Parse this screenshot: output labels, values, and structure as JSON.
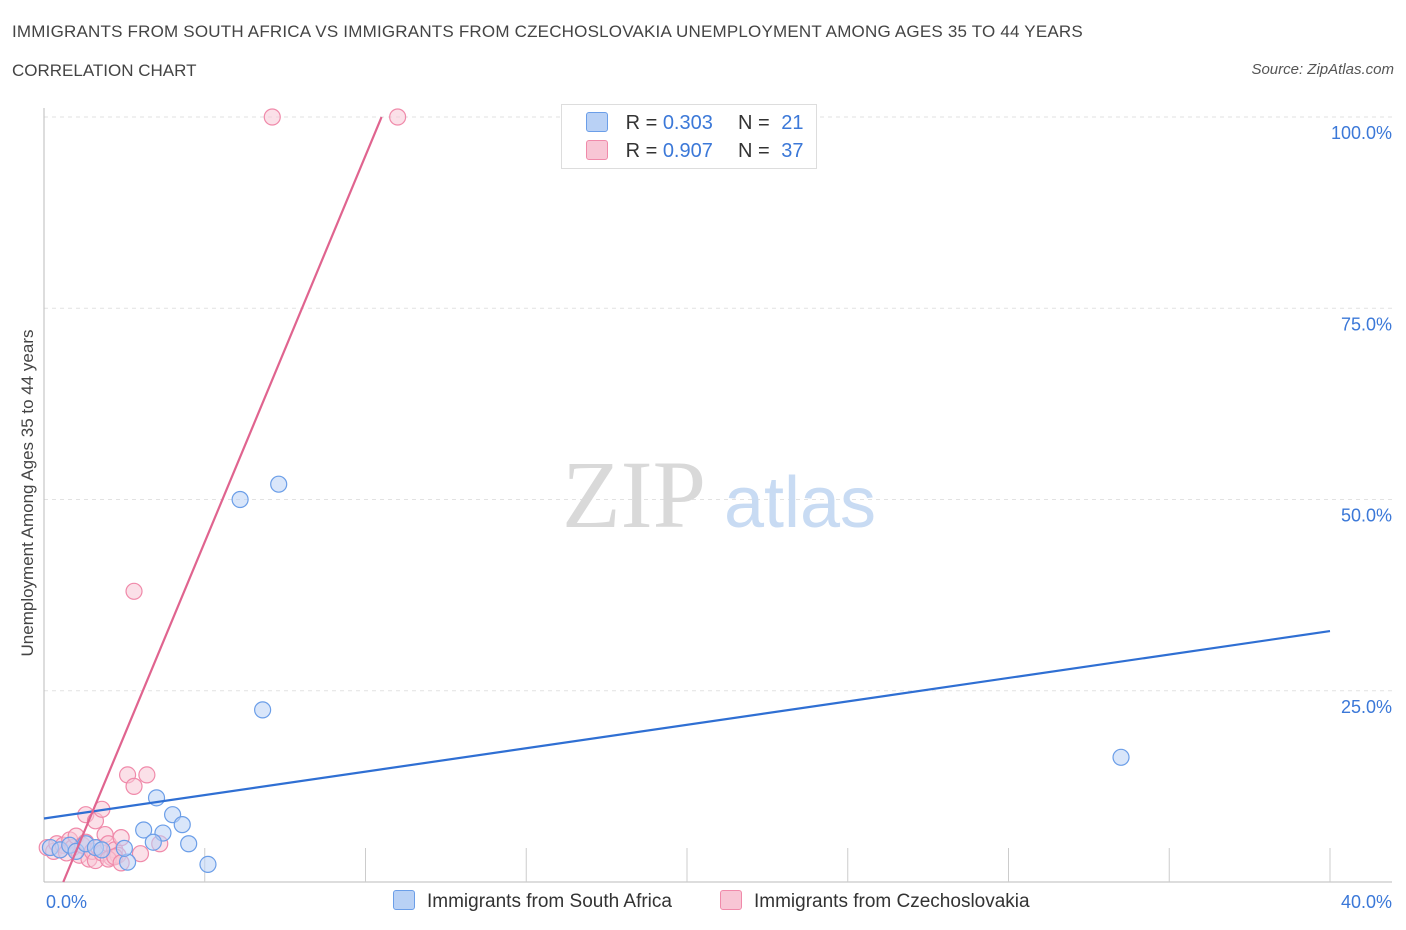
{
  "header": {
    "title": "IMMIGRANTS FROM SOUTH AFRICA VS IMMIGRANTS FROM CZECHOSLOVAKIA UNEMPLOYMENT AMONG AGES 35 TO 44 YEARS",
    "subtitle": "CORRELATION CHART",
    "source": "Source: ZipAtlas.com"
  },
  "watermark": {
    "zip": "ZIP",
    "atlas": "atlas"
  },
  "legend": {
    "series1": {
      "r_label": "R =",
      "r_value": "0.303",
      "n_label": "N =",
      "n_value": "21"
    },
    "series2": {
      "r_label": "R =",
      "r_value": "0.907",
      "n_label": "N =",
      "n_value": "37"
    }
  },
  "chart_data": {
    "type": "scatter",
    "title": "IMMIGRANTS FROM SOUTH AFRICA VS IMMIGRANTS FROM CZECHOSLOVAKIA UNEMPLOYMENT AMONG AGES 35 TO 44 YEARS",
    "subtitle": "CORRELATION CHART",
    "xlabel": "",
    "ylabel": "Unemployment Among Ages 35 to 44 years",
    "xlim": [
      0,
      40
    ],
    "ylim": [
      0,
      100
    ],
    "x_tick_labels": [
      "0.0%",
      "40.0%"
    ],
    "y_tick_labels": [
      "25.0%",
      "50.0%",
      "75.0%",
      "100.0%"
    ],
    "y_ticks": [
      25,
      50,
      75,
      100
    ],
    "legend_position": "top-center",
    "series": [
      {
        "name": "Immigrants from South Africa",
        "color": "#6b9ee8",
        "fill": "#b9d1f5",
        "line_color": "#2f6fd3",
        "r": 0.303,
        "n": 21,
        "trend": {
          "x": [
            0,
            40
          ],
          "y": [
            8.3,
            32.8
          ]
        },
        "points": [
          [
            0.2,
            4.5
          ],
          [
            0.5,
            4.2
          ],
          [
            0.8,
            4.8
          ],
          [
            1.0,
            4.0
          ],
          [
            1.3,
            5.0
          ],
          [
            1.6,
            4.5
          ],
          [
            1.8,
            4.2
          ],
          [
            2.6,
            2.6
          ],
          [
            2.5,
            4.4
          ],
          [
            3.5,
            11.0
          ],
          [
            3.1,
            6.8
          ],
          [
            3.7,
            6.4
          ],
          [
            3.4,
            5.2
          ],
          [
            4.0,
            8.8
          ],
          [
            4.3,
            7.5
          ],
          [
            4.5,
            5.0
          ],
          [
            5.1,
            2.3
          ],
          [
            6.1,
            50.0
          ],
          [
            7.3,
            52.0
          ],
          [
            6.8,
            22.5
          ],
          [
            33.5,
            16.3
          ]
        ]
      },
      {
        "name": "Immigrants from Czechoslovakia",
        "color": "#f08aaa",
        "fill": "#f8c6d5",
        "line_color": "#e0648f",
        "r": 0.907,
        "n": 37,
        "trend": {
          "x": [
            0.6,
            10.5
          ],
          "y": [
            0,
            100
          ]
        },
        "points": [
          [
            0.1,
            4.5
          ],
          [
            0.3,
            4.0
          ],
          [
            0.4,
            5.0
          ],
          [
            0.5,
            4.2
          ],
          [
            0.6,
            4.8
          ],
          [
            0.7,
            3.8
          ],
          [
            0.8,
            5.5
          ],
          [
            0.9,
            4.5
          ],
          [
            1.0,
            6.0
          ],
          [
            1.1,
            3.5
          ],
          [
            1.2,
            4.8
          ],
          [
            1.3,
            5.2
          ],
          [
            1.4,
            3.0
          ],
          [
            1.5,
            4.0
          ],
          [
            1.6,
            2.8
          ],
          [
            1.7,
            4.5
          ],
          [
            1.8,
            3.8
          ],
          [
            1.9,
            6.2
          ],
          [
            2.0,
            5.0
          ],
          [
            2.1,
            3.2
          ],
          [
            2.2,
            4.2
          ],
          [
            2.3,
            3.5
          ],
          [
            2.4,
            5.8
          ],
          [
            1.3,
            8.8
          ],
          [
            1.6,
            8.0
          ],
          [
            1.8,
            9.5
          ],
          [
            2.0,
            3.0
          ],
          [
            2.2,
            3.3
          ],
          [
            2.4,
            2.5
          ],
          [
            2.6,
            14.0
          ],
          [
            2.8,
            12.5
          ],
          [
            3.2,
            14.0
          ],
          [
            3.0,
            3.7
          ],
          [
            3.6,
            5.0
          ],
          [
            2.8,
            38.0
          ],
          [
            7.1,
            100.0
          ],
          [
            11.0,
            100.0
          ]
        ]
      }
    ]
  },
  "bottom_legend": {
    "item1": "Immigrants from South Africa",
    "item2": "Immigrants from Czechoslovakia"
  }
}
